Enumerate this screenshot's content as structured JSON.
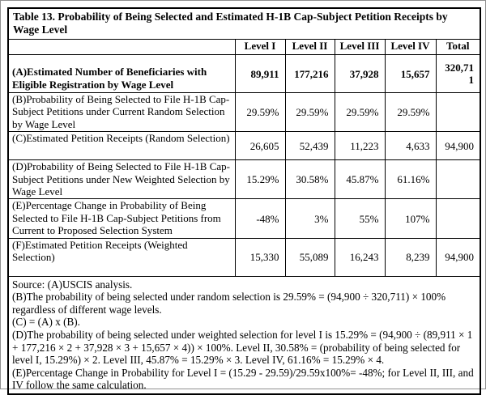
{
  "table": {
    "title": "Table 13. Probability of Being Selected and Estimated H-1B Cap-Subject Petition Receipts by Wage Level",
    "columns": [
      "",
      "Level I",
      "Level II",
      "Level III",
      "Level IV",
      "Total"
    ],
    "rows": [
      {
        "id": "A",
        "label": "(A)Estimated Number of Beneficiaries with Eligible Registration by Wage Level",
        "values": [
          "89,911",
          "177,216",
          "37,928",
          "15,657",
          "320,711"
        ]
      },
      {
        "id": "B",
        "label": "(B)Probability of Being Selected to File H-1B Cap-Subject Petitions under Current Random Selection by Wage Level",
        "values": [
          "29.59%",
          "29.59%",
          "29.59%",
          "29.59%",
          ""
        ]
      },
      {
        "id": "C",
        "label": "(C)Estimated Petition Receipts (Random Selection)",
        "values": [
          "26,605",
          "52,439",
          "11,223",
          "4,633",
          "94,900"
        ]
      },
      {
        "id": "D",
        "label": "(D)Probability of Being Selected to File H-1B Cap-Subject Petitions under New Weighted Selection by Wage Level",
        "values": [
          "15.29%",
          "30.58%",
          "45.87%",
          "61.16%",
          ""
        ]
      },
      {
        "id": "E",
        "label": "(E)Percentage Change in Probability of Being Selected to File H-1B Cap-Subject Petitions from Current to Proposed Selection System",
        "values": [
          "-48%",
          "3%",
          "55%",
          "107%",
          ""
        ]
      },
      {
        "id": "F",
        "label": "(F)Estimated Petition Receipts (Weighted Selection)",
        "values": [
          "15,330",
          "55,089",
          "16,243",
          "8,239",
          "94,900"
        ]
      }
    ],
    "notes": [
      "Source: (A)USCIS analysis.",
      "(B)The probability of being selected under random selection is 29.59% = (94,900 ÷ 320,711) × 100% regardless of different wage levels.",
      "(C) = (A) x (B).",
      "(D)The probability of being selected under weighted selection for level I is 15.29% = (94,900 ÷ (89,911 × 1 + 177,216 × 2 + 37,928 × 3 + 15,657 × 4)) × 100%. Level II, 30.58% = (probability of being selected for level I, 15.29%) × 2. Level III, 45.87% = 15.29% × 3. Level IV, 61.16% = 15.29% × 4.",
      "(E)Percentage Change in Probability for Level I = (15.29 - 29.59)/29.59x100%= -48%; for Level II, III, and IV follow the same calculation."
    ]
  }
}
